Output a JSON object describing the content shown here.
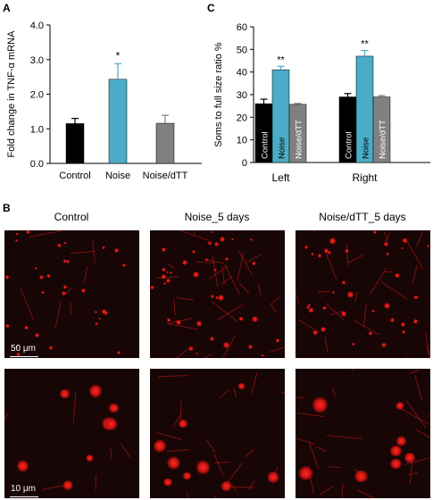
{
  "panels": {
    "a": "A",
    "b": "B",
    "c": "C"
  },
  "chart_data": [
    {
      "panel": "A",
      "type": "bar",
      "categories": [
        "Control",
        "Noise",
        "Noise/dTT"
      ],
      "values": [
        1.15,
        2.43,
        1.16
      ],
      "errors": [
        0.15,
        0.45,
        0.23
      ],
      "colors": [
        "#000000",
        "#4aacc6",
        "#808080"
      ],
      "annotations": [
        "",
        "*",
        ""
      ],
      "ylabel": "Fold change in TNF-α mRNA",
      "ylim": [
        0,
        4.0
      ],
      "yticks": [
        "0.0",
        "1.0",
        "2.0",
        "3.0",
        "4.0"
      ]
    },
    {
      "panel": "C",
      "type": "bar",
      "groups": [
        "Left",
        "Right"
      ],
      "series": [
        {
          "name": "Control",
          "values": [
            26,
            29
          ],
          "errors": [
            2,
            1.5
          ],
          "color": "#000000"
        },
        {
          "name": "Noise",
          "values": [
            41,
            47
          ],
          "errors": [
            1.5,
            2.5
          ],
          "color": "#4aacc6"
        },
        {
          "name": "Noise/dTT",
          "values": [
            25.7,
            29
          ],
          "errors": [
            0.4,
            0.6
          ],
          "color": "#808080"
        }
      ],
      "annotations": [
        [
          "",
          "**",
          ""
        ],
        [
          "",
          "**",
          ""
        ]
      ],
      "ylabel": "Soms to full size ratio %",
      "ylim": [
        0,
        60
      ],
      "yticks": [
        "0",
        "10",
        "20",
        "30",
        "40",
        "50",
        "60"
      ]
    }
  ],
  "micrographs": {
    "titles": [
      "Control",
      "Noise_5 days",
      "Noise/dTT_5 days"
    ],
    "scalebar_top": "50 μm",
    "scalebar_bottom": "10 μm"
  }
}
